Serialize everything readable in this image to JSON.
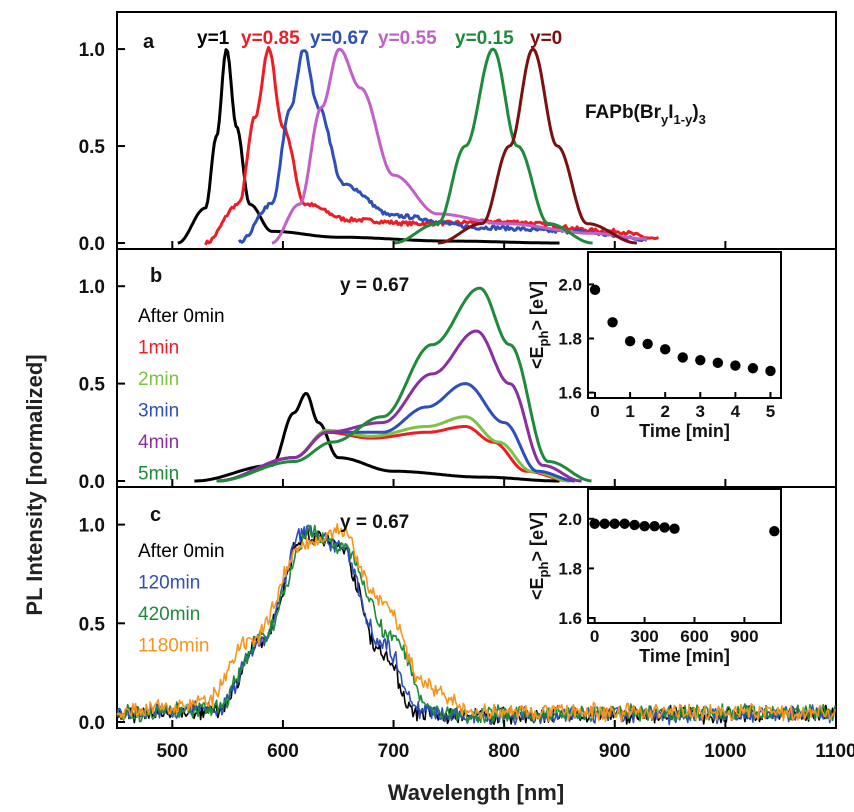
{
  "figure": {
    "xlabel": "Wavelength [nm]",
    "ylabel": "PL Intensity [normalized]",
    "x_ticks": [
      "500",
      "600",
      "700",
      "800",
      "900",
      "1000",
      "1100"
    ],
    "y_ticks": [
      "0.0",
      "0.5",
      "1.0"
    ]
  },
  "chart_data": [
    {
      "panel": "a",
      "type": "line",
      "xlim": [
        450,
        1100
      ],
      "ylim": [
        0,
        1.15
      ],
      "formula": "FAPb(Br",
      "formula_sub1": "y",
      "formula_mid": "I",
      "formula_sub2": "1-y",
      "formula_end": ")",
      "formula_sub3": "3",
      "series": [
        {
          "name": "y=1",
          "color": "#000000",
          "peak": 549,
          "fwhm": 22,
          "points": [
            [
              505,
              0.0
            ],
            [
              530,
              0.18
            ],
            [
              540,
              0.55
            ],
            [
              549,
              1.0
            ],
            [
              558,
              0.6
            ],
            [
              570,
              0.2
            ],
            [
              590,
              0.06
            ],
            [
              650,
              0.03
            ],
            [
              750,
              0.01
            ],
            [
              850,
              0.0
            ]
          ]
        },
        {
          "name": "y=0.85",
          "color": "#ee1c24",
          "peak": 587,
          "fwhm": 28,
          "points": [
            [
              530,
              0.0
            ],
            [
              560,
              0.2
            ],
            [
              575,
              0.65
            ],
            [
              587,
              1.0
            ],
            [
              600,
              0.6
            ],
            [
              620,
              0.2
            ],
            [
              660,
              0.12
            ],
            [
              720,
              0.1
            ],
            [
              800,
              0.11
            ],
            [
              900,
              0.06
            ],
            [
              940,
              0.02
            ]
          ]
        },
        {
          "name": "y=0.67",
          "color": "#2e4fb8",
          "peak": 619,
          "fwhm": 40,
          "points": [
            [
              560,
              0.0
            ],
            [
              590,
              0.2
            ],
            [
              607,
              0.7
            ],
            [
              619,
              1.0
            ],
            [
              632,
              0.7
            ],
            [
              655,
              0.3
            ],
            [
              700,
              0.14
            ],
            [
              780,
              0.08
            ],
            [
              860,
              0.06
            ],
            [
              930,
              0.02
            ]
          ]
        },
        {
          "name": "y=0.55",
          "color": "#c060c8",
          "peak": 651,
          "fwhm": 70,
          "points": [
            [
              590,
              0.0
            ],
            [
              615,
              0.2
            ],
            [
              635,
              0.7
            ],
            [
              651,
              1.0
            ],
            [
              670,
              0.8
            ],
            [
              700,
              0.35
            ],
            [
              740,
              0.15
            ],
            [
              800,
              0.1
            ],
            [
              880,
              0.05
            ],
            [
              930,
              0.02
            ]
          ]
        },
        {
          "name": "y=0.15",
          "color": "#1f8a3a",
          "peak": 790,
          "fwhm": 50,
          "points": [
            [
              700,
              0.0
            ],
            [
              740,
              0.1
            ],
            [
              765,
              0.5
            ],
            [
              790,
              1.0
            ],
            [
              812,
              0.5
            ],
            [
              840,
              0.1
            ],
            [
              880,
              0.0
            ]
          ]
        },
        {
          "name": "y=0",
          "color": "#7a1010",
          "peak": 826,
          "fwhm": 50,
          "points": [
            [
              740,
              0.0
            ],
            [
              780,
              0.1
            ],
            [
              805,
              0.5
            ],
            [
              826,
              1.0
            ],
            [
              848,
              0.5
            ],
            [
              875,
              0.1
            ],
            [
              920,
              0.0
            ]
          ]
        }
      ]
    },
    {
      "panel": "b",
      "type": "line",
      "xlim": [
        450,
        1100
      ],
      "ylim": [
        0,
        1.15
      ],
      "annotation": "y = 0.67",
      "legend_prefix": "After 0min",
      "series": [
        {
          "name": "0min",
          "color": "#000000",
          "points": [
            [
              520,
              0.0
            ],
            [
              590,
              0.08
            ],
            [
              610,
              0.35
            ],
            [
              621,
              0.45
            ],
            [
              632,
              0.3
            ],
            [
              650,
              0.12
            ],
            [
              700,
              0.05
            ],
            [
              780,
              0.02
            ],
            [
              850,
              0.0
            ]
          ]
        },
        {
          "name": "1min",
          "color": "#ee1c24",
          "points": [
            [
              540,
              0.0
            ],
            [
              610,
              0.12
            ],
            [
              640,
              0.25
            ],
            [
              680,
              0.22
            ],
            [
              730,
              0.25
            ],
            [
              765,
              0.28
            ],
            [
              790,
              0.2
            ],
            [
              820,
              0.05
            ],
            [
              860,
              0.0
            ]
          ]
        },
        {
          "name": "2min",
          "color": "#7cc243",
          "points": [
            [
              540,
              0.0
            ],
            [
              610,
              0.12
            ],
            [
              640,
              0.26
            ],
            [
              680,
              0.23
            ],
            [
              730,
              0.28
            ],
            [
              765,
              0.33
            ],
            [
              795,
              0.2
            ],
            [
              825,
              0.05
            ],
            [
              860,
              0.0
            ]
          ]
        },
        {
          "name": "3min",
          "color": "#2e4fb8",
          "points": [
            [
              540,
              0.0
            ],
            [
              610,
              0.12
            ],
            [
              640,
              0.25
            ],
            [
              690,
              0.25
            ],
            [
              730,
              0.38
            ],
            [
              765,
              0.5
            ],
            [
              800,
              0.3
            ],
            [
              830,
              0.05
            ],
            [
              865,
              0.0
            ]
          ]
        },
        {
          "name": "4min",
          "color": "#8a2fa0",
          "points": [
            [
              540,
              0.0
            ],
            [
              610,
              0.12
            ],
            [
              640,
              0.25
            ],
            [
              690,
              0.3
            ],
            [
              735,
              0.55
            ],
            [
              775,
              0.77
            ],
            [
              805,
              0.5
            ],
            [
              835,
              0.08
            ],
            [
              870,
              0.0
            ]
          ]
        },
        {
          "name": "5min",
          "color": "#1f8a3a",
          "points": [
            [
              540,
              0.0
            ],
            [
              610,
              0.1
            ],
            [
              645,
              0.2
            ],
            [
              690,
              0.33
            ],
            [
              735,
              0.7
            ],
            [
              778,
              0.99
            ],
            [
              805,
              0.7
            ],
            [
              840,
              0.1
            ],
            [
              880,
              0.0
            ]
          ]
        }
      ],
      "inset": {
        "type": "scatter",
        "xlabel": "Time [min]",
        "ylabel_main": "<E",
        "ylabel_sub": "ph",
        "ylabel_end": "> [eV]",
        "xlim": [
          -0.2,
          5.3
        ],
        "ylim": [
          1.58,
          2.12
        ],
        "x_ticks": [
          "0",
          "1",
          "2",
          "3",
          "4",
          "5"
        ],
        "y_ticks": [
          "1.6",
          "1.8",
          "2.0"
        ],
        "x": [
          0,
          0.5,
          1.0,
          1.5,
          2.0,
          2.5,
          3.0,
          3.5,
          4.0,
          4.5,
          5.0
        ],
        "y": [
          1.98,
          1.86,
          1.79,
          1.78,
          1.76,
          1.73,
          1.72,
          1.71,
          1.7,
          1.69,
          1.68
        ]
      }
    },
    {
      "panel": "c",
      "type": "line",
      "xlim": [
        450,
        1100
      ],
      "ylim": [
        0,
        1.15
      ],
      "annotation": "y = 0.67",
      "legend_prefix": "After 0min",
      "series": [
        {
          "name": "0min",
          "color": "#000000",
          "points": [
            [
              450,
              0.04
            ],
            [
              540,
              0.06
            ],
            [
              580,
              0.4
            ],
            [
              620,
              0.95
            ],
            [
              650,
              0.9
            ],
            [
              690,
              0.35
            ],
            [
              720,
              0.05
            ],
            [
              740,
              0.03
            ],
            [
              1100,
              0.04
            ]
          ]
        },
        {
          "name": "120min",
          "color": "#2e4fb8",
          "points": [
            [
              450,
              0.04
            ],
            [
              540,
              0.06
            ],
            [
              580,
              0.4
            ],
            [
              620,
              0.97
            ],
            [
              650,
              0.9
            ],
            [
              690,
              0.4
            ],
            [
              725,
              0.06
            ],
            [
              745,
              0.03
            ],
            [
              1100,
              0.04
            ]
          ]
        },
        {
          "name": "420min",
          "color": "#1f8a3a",
          "points": [
            [
              450,
              0.04
            ],
            [
              540,
              0.07
            ],
            [
              580,
              0.42
            ],
            [
              625,
              0.96
            ],
            [
              655,
              0.88
            ],
            [
              700,
              0.42
            ],
            [
              735,
              0.06
            ],
            [
              755,
              0.04
            ],
            [
              1100,
              0.05
            ]
          ]
        },
        {
          "name": "1180min",
          "color": "#f7941d",
          "points": [
            [
              450,
              0.05
            ],
            [
              530,
              0.1
            ],
            [
              570,
              0.4
            ],
            [
              620,
              0.9
            ],
            [
              650,
              0.98
            ],
            [
              690,
              0.6
            ],
            [
              730,
              0.18
            ],
            [
              770,
              0.05
            ],
            [
              1100,
              0.05
            ]
          ]
        }
      ],
      "inset": {
        "type": "scatter",
        "xlabel": "Time [min]",
        "ylabel_main": "<E",
        "ylabel_sub": "ph",
        "ylabel_end": "> [eV]",
        "xlim": [
          -40,
          1120
        ],
        "ylim": [
          1.58,
          2.12
        ],
        "x_ticks": [
          "0",
          "300",
          "600",
          "900"
        ],
        "y_ticks": [
          "1.6",
          "1.8",
          "2.0"
        ],
        "x": [
          0,
          60,
          120,
          180,
          240,
          300,
          360,
          420,
          480,
          1080
        ],
        "y": [
          1.98,
          1.98,
          1.98,
          1.98,
          1.975,
          1.97,
          1.97,
          1.965,
          1.96,
          1.95
        ]
      }
    }
  ]
}
